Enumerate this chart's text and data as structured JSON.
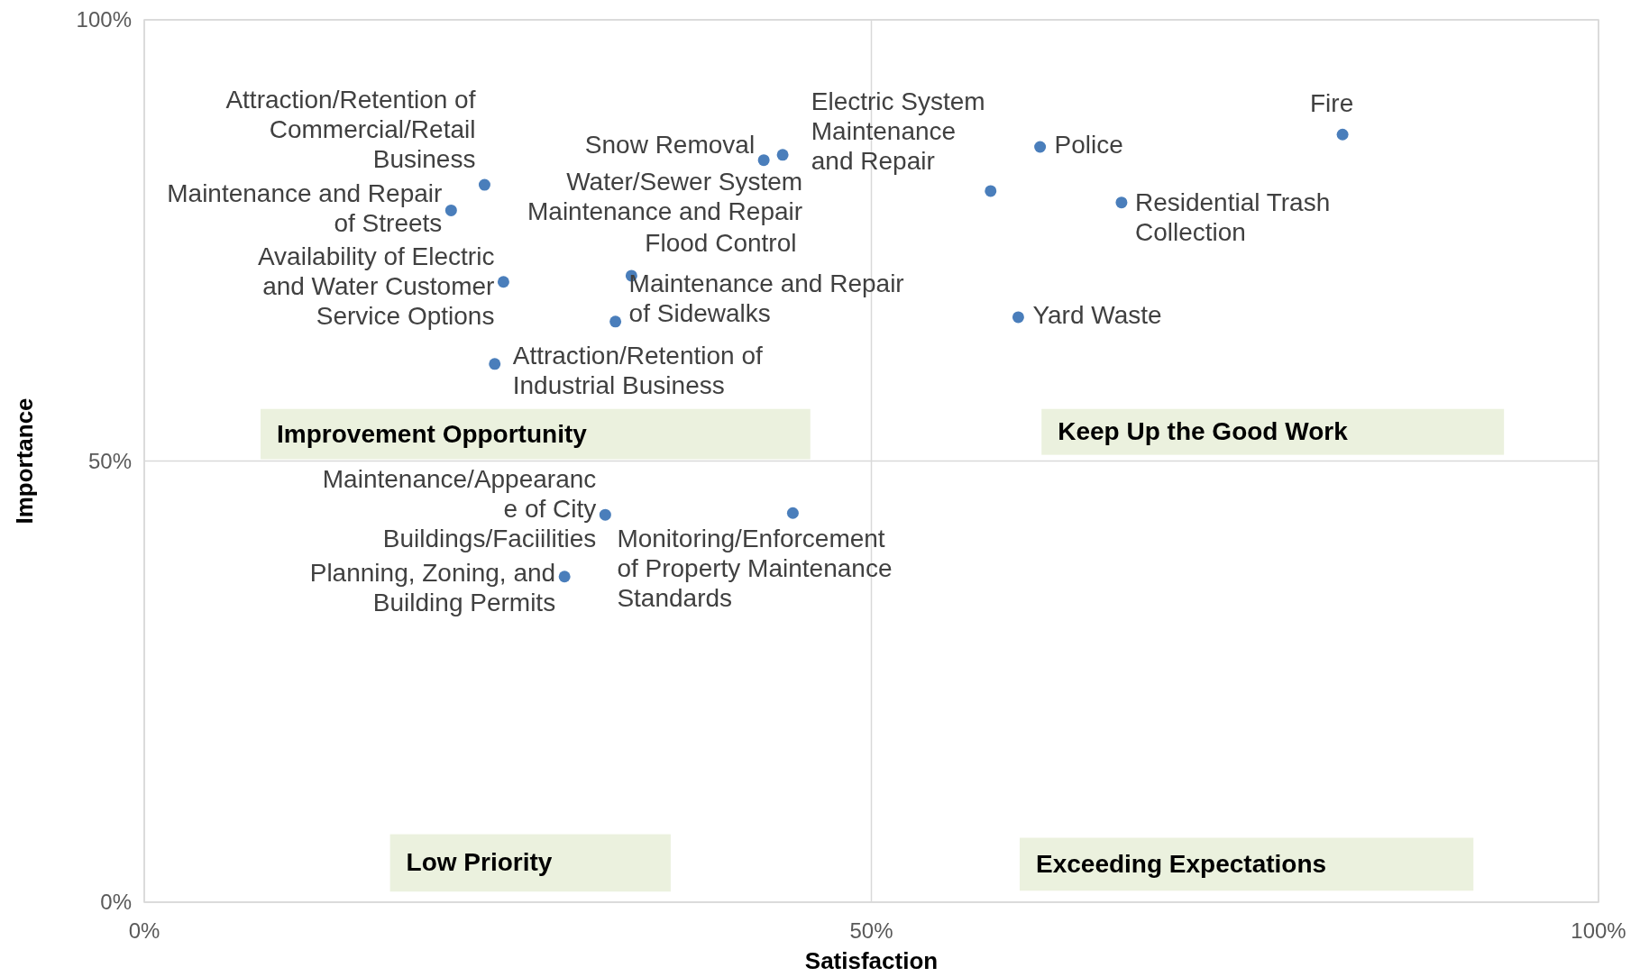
{
  "chart_data": {
    "type": "scatter",
    "xlabel": "Satisfaction",
    "ylabel": "Importance",
    "color": "#4a7ebb",
    "marker": "circle",
    "grid": true,
    "xlim": [
      0,
      100
    ],
    "ylim": [
      0,
      100
    ],
    "xticks": [
      {
        "value": 0,
        "label": "0%"
      },
      {
        "value": 50,
        "label": "50%"
      },
      {
        "value": 100,
        "label": "100%"
      }
    ],
    "yticks": [
      {
        "value": 0,
        "label": "0%"
      },
      {
        "value": 50,
        "label": "50%"
      },
      {
        "value": 100,
        "label": "100%"
      }
    ],
    "x": [
      23.4,
      21.1,
      24.7,
      33.5,
      32.4,
      24.1,
      42.6,
      43.9,
      58.2,
      61.6,
      67.2,
      82.4,
      60.1,
      31.7,
      44.6,
      28.9
    ],
    "values": [
      81.3,
      78.4,
      70.3,
      71.0,
      65.8,
      61.0,
      84.1,
      84.7,
      80.6,
      85.6,
      79.3,
      87.0,
      66.3,
      43.9,
      44.1,
      36.9
    ],
    "annotations": [
      {
        "text": "Attraction/Retention of Commercial/Retail Business",
        "x": 23.4,
        "y": 81.3
      },
      {
        "text": "Maintenance and Repair of Streets",
        "x": 21.1,
        "y": 78.4
      },
      {
        "text": "Availability of Electric and Water Customer Service Options",
        "x": 24.7,
        "y": 70.3
      },
      {
        "text": "Flood Control",
        "x": 33.5,
        "y": 71.0
      },
      {
        "text": "Maintenance and Repair of Sidewalks",
        "x": 32.4,
        "y": 65.8
      },
      {
        "text": "Attraction/Retention of Industrial Business",
        "x": 24.1,
        "y": 61.0
      },
      {
        "text": "Snow Removal",
        "x": 42.6,
        "y": 84.1
      },
      {
        "text": "Water/Sewer System Maintenance and Repair",
        "x": 43.9,
        "y": 84.7
      },
      {
        "text": "Electric System Maintenance and Repair",
        "x": 58.2,
        "y": 80.6
      },
      {
        "text": "Police",
        "x": 61.6,
        "y": 85.6
      },
      {
        "text": "Residential Trash Collection",
        "x": 67.2,
        "y": 79.3
      },
      {
        "text": "Fire",
        "x": 82.4,
        "y": 87.0
      },
      {
        "text": "Yard Waste",
        "x": 60.1,
        "y": 66.3
      },
      {
        "text": "Maintenance/Appearance of City Buildings/Faciilities",
        "x": 31.7,
        "y": 43.9
      },
      {
        "text": "Monitoring/Enforcement of Property Maintenance Standards",
        "x": 44.6,
        "y": 44.1
      },
      {
        "text": "Planning, Zoning, and Building Permits",
        "x": 28.9,
        "y": 36.9
      },
      "Improvement Opportunity",
      "Keep Up the Good Work",
      "Low Priority",
      "Exceeding Expectations"
    ]
  }
}
